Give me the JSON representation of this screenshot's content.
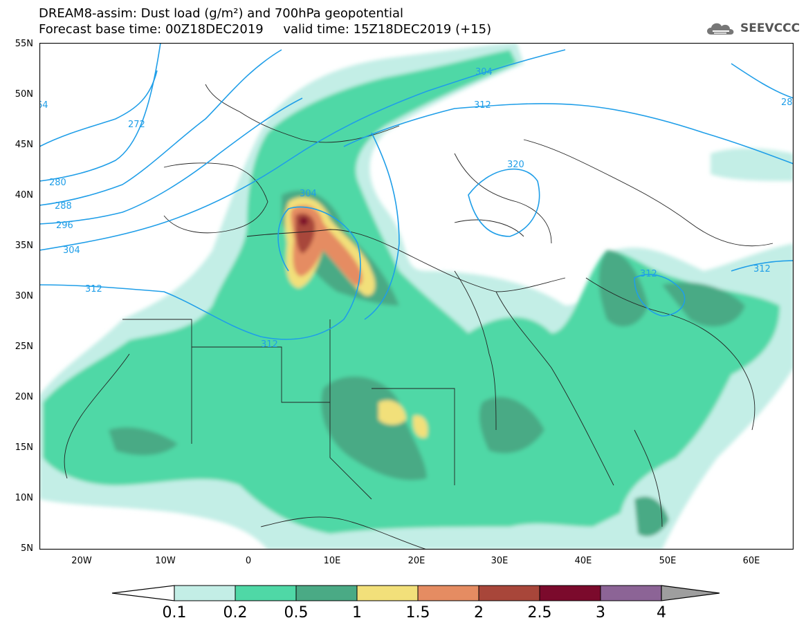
{
  "header": {
    "line1": "DREAM8-assim: Dust load (g/m²) and 700hPa geopotential",
    "line2": "Forecast base time: 00Z18DEC2019     valid time: 15Z18DEC2019 (+15)"
  },
  "logo": {
    "text": "SEEVCCC",
    "icon": "cloud-icon"
  },
  "axes": {
    "lat_labels": [
      "55N",
      "50N",
      "45N",
      "40N",
      "35N",
      "30N",
      "25N",
      "20N",
      "15N",
      "10N",
      "5N"
    ],
    "lon_labels": [
      "20W",
      "10W",
      "0",
      "10E",
      "20E",
      "30E",
      "40E",
      "50E",
      "60E"
    ]
  },
  "contours": {
    "labels": [
      "272",
      "280",
      "288",
      "296",
      "304",
      "312",
      "312",
      "304",
      "312",
      "320",
      "312",
      "312",
      "64",
      "28"
    ]
  },
  "colorbar": {
    "ticks": [
      "0.1",
      "0.2",
      "0.5",
      "1",
      "1.5",
      "2",
      "2.5",
      "3",
      "4"
    ],
    "colors": [
      "#c3eee6",
      "#4fd8a6",
      "#4aaa85",
      "#f2e07a",
      "#e58c62",
      "#a8463a",
      "#7b0a2c",
      "#8c6496",
      "#9e9e9e"
    ]
  },
  "map": {
    "region": "North Africa, Europe and Middle East",
    "extent": {
      "lon": [
        -25,
        65
      ],
      "lat": [
        5,
        55
      ]
    },
    "contour_color": "#1f9ee8"
  }
}
